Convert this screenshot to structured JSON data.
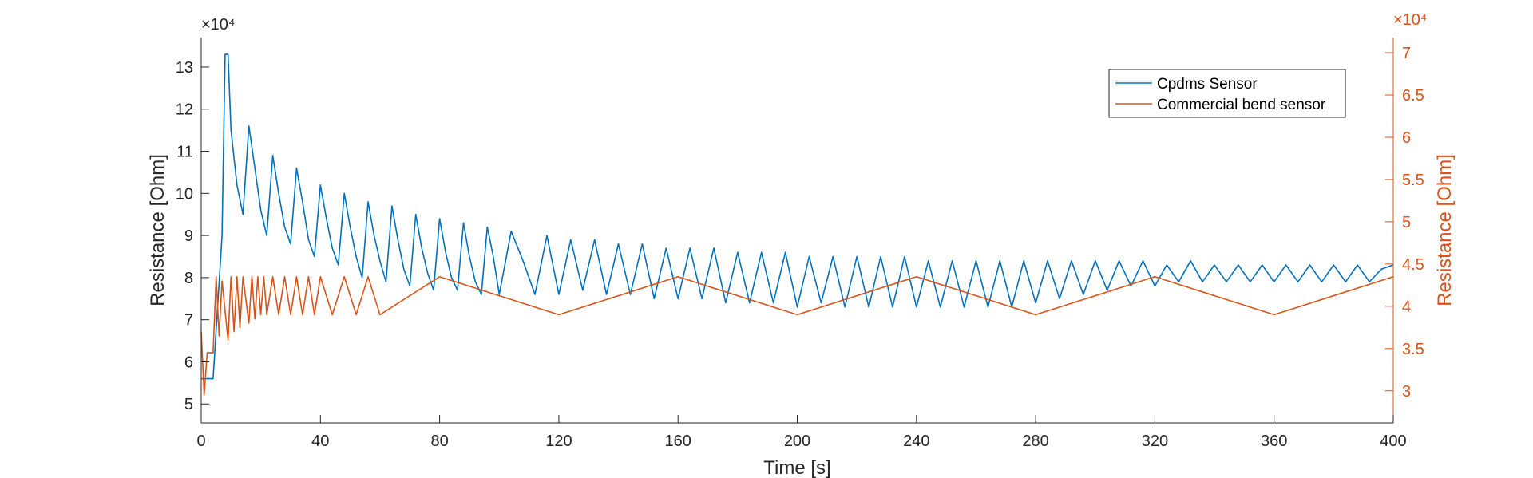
{
  "chart_data": {
    "type": "line",
    "title": "",
    "xlabel": "Time [s]",
    "ylabel_left": "Resistance [Ohm]",
    "ylabel_right": "Resistance [Ohm]",
    "exponent_left": "×10⁴",
    "exponent_right": "×10⁴",
    "xlim": [
      0,
      400
    ],
    "ylim_left": [
      4.55,
      13.7
    ],
    "ylim_right": [
      2.62,
      7.18
    ],
    "xticks": [
      "0",
      "40",
      "80",
      "120",
      "160",
      "200",
      "240",
      "280",
      "320",
      "360",
      "400"
    ],
    "yticks_left": [
      "5",
      "6",
      "7",
      "8",
      "9",
      "10",
      "11",
      "12",
      "13"
    ],
    "yticks_right": [
      "3",
      "3.5",
      "4",
      "4.5",
      "5",
      "5.5",
      "6",
      "6.5",
      "7"
    ],
    "grid": false,
    "legend": {
      "position": "top-right",
      "entries": [
        "Cpdms Sensor",
        "Commercial bend sensor"
      ]
    },
    "colors": {
      "series1": "#0072BD",
      "series2": "#D95319",
      "axis_right": "#D95319",
      "axis_left": "#262626"
    },
    "series": [
      {
        "name": "Cpdms Sensor",
        "axis": "left",
        "unit_scale": "x10^4 Ohm",
        "x": [
          0,
          4,
          7,
          8,
          9,
          10,
          12,
          14,
          16,
          18,
          20,
          22,
          24,
          26,
          28,
          30,
          32,
          34,
          36,
          38,
          40,
          42,
          44,
          46,
          48,
          50,
          52,
          54,
          56,
          58,
          60,
          62,
          64,
          66,
          68,
          70,
          72,
          74,
          76,
          78,
          80,
          82,
          84,
          86,
          88,
          90,
          92,
          94,
          96,
          98,
          100,
          104,
          108,
          112,
          116,
          120,
          124,
          128,
          132,
          136,
          140,
          144,
          148,
          152,
          156,
          160,
          164,
          168,
          172,
          176,
          180,
          184,
          188,
          192,
          196,
          200,
          204,
          208,
          212,
          216,
          220,
          224,
          228,
          232,
          236,
          240,
          244,
          248,
          252,
          256,
          260,
          264,
          268,
          272,
          276,
          280,
          284,
          288,
          292,
          296,
          300,
          304,
          308,
          312,
          316,
          320,
          324,
          328,
          332,
          336,
          340,
          344,
          348,
          352,
          356,
          360,
          364,
          368,
          372,
          376,
          380,
          384,
          388,
          392,
          396,
          400
        ],
        "values": [
          5.6,
          5.6,
          9.0,
          13.3,
          13.3,
          11.5,
          10.2,
          9.5,
          11.6,
          10.6,
          9.6,
          9.0,
          10.9,
          10.0,
          9.2,
          8.8,
          10.6,
          9.8,
          8.9,
          8.5,
          10.2,
          9.4,
          8.7,
          8.3,
          10.0,
          9.2,
          8.5,
          8.0,
          9.8,
          9.0,
          8.4,
          7.9,
          9.7,
          8.9,
          8.2,
          7.8,
          9.5,
          8.7,
          8.1,
          7.7,
          9.4,
          8.6,
          8.0,
          7.7,
          9.3,
          8.5,
          7.9,
          7.6,
          9.2,
          8.5,
          7.6,
          9.1,
          8.4,
          7.6,
          9.0,
          7.6,
          8.9,
          7.7,
          8.9,
          7.6,
          8.8,
          7.6,
          8.8,
          7.5,
          8.7,
          7.5,
          8.7,
          7.5,
          8.7,
          7.4,
          8.6,
          7.4,
          8.6,
          7.4,
          8.6,
          7.3,
          8.5,
          7.4,
          8.5,
          7.3,
          8.5,
          7.3,
          8.5,
          7.3,
          8.5,
          7.3,
          8.4,
          7.3,
          8.4,
          7.3,
          8.4,
          7.3,
          8.4,
          7.3,
          8.4,
          7.4,
          8.4,
          7.5,
          8.4,
          7.6,
          8.4,
          7.7,
          8.4,
          7.8,
          8.4,
          7.8,
          8.3,
          7.9,
          8.4,
          7.9,
          8.3,
          7.9,
          8.3,
          7.9,
          8.3,
          7.9,
          8.3,
          7.9,
          8.3,
          7.9,
          8.3,
          7.9,
          8.3,
          7.9,
          8.2,
          8.3
        ]
      },
      {
        "name": "Commercial bend sensor",
        "axis": "right",
        "unit_scale": "x10^4 Ohm",
        "x": [
          0,
          1,
          2,
          3,
          4,
          5,
          6,
          7,
          9,
          10,
          11,
          12,
          13,
          14,
          16,
          17,
          18,
          19,
          20,
          21,
          22,
          24,
          26,
          28,
          30,
          32,
          34,
          36,
          38,
          40,
          44,
          48,
          52,
          56,
          60,
          80,
          120,
          160,
          200,
          240,
          280,
          320,
          360,
          400
        ],
        "values": [
          3.7,
          2.95,
          3.45,
          3.45,
          3.45,
          4.35,
          3.65,
          4.3,
          3.6,
          4.35,
          3.7,
          4.35,
          3.75,
          4.35,
          3.8,
          4.35,
          3.85,
          4.35,
          3.9,
          4.35,
          3.9,
          4.35,
          3.9,
          4.35,
          3.9,
          4.35,
          3.9,
          4.35,
          3.9,
          4.35,
          3.9,
          4.35,
          3.9,
          4.35,
          3.9,
          4.35,
          3.9,
          4.35,
          3.9,
          4.35,
          3.9,
          4.35,
          3.9,
          4.35
        ],
        "oscillation_period_s": 4.7,
        "oscillation_range": [
          3.9,
          4.35
        ]
      }
    ]
  }
}
